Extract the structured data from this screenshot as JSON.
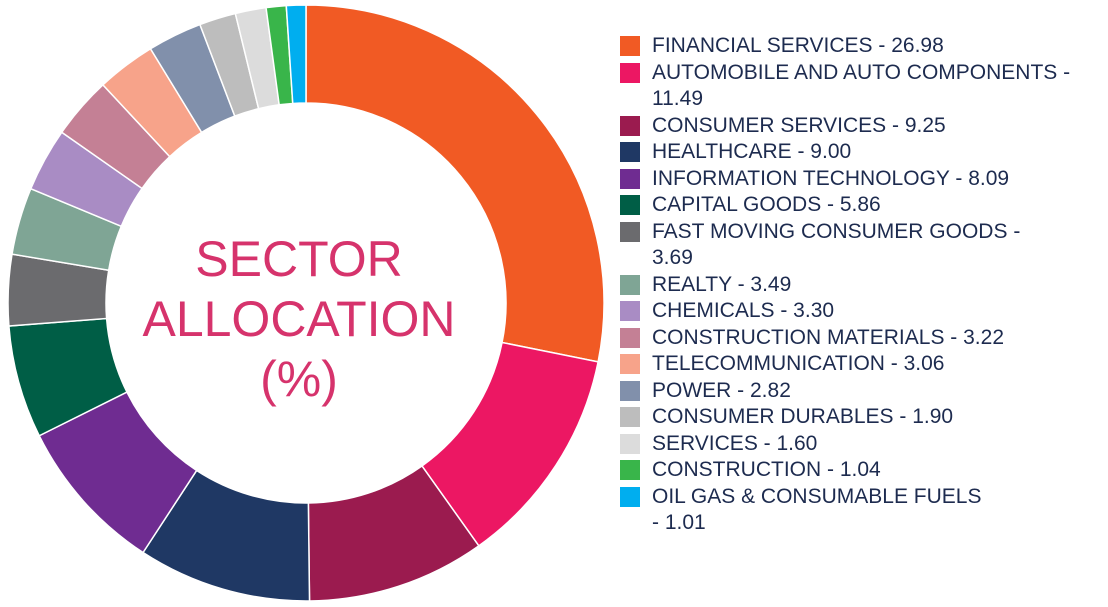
{
  "chart_data": {
    "type": "donut",
    "title_lines": [
      "SECTOR",
      "ALLOCATION",
      "(%)"
    ],
    "legend_placement": "right",
    "series": [
      {
        "name": "FINANCIAL SERVICES",
        "value": 26.98,
        "color": "#f15a24",
        "label": "FINANCIAL SERVICES - 26.98"
      },
      {
        "name": "AUTOMOBILE AND AUTO COMPONENTS",
        "value": 11.49,
        "color": "#ec1763",
        "label": "AUTOMOBILE AND AUTO COMPONENTS -\n11.49"
      },
      {
        "name": "CONSUMER SERVICES",
        "value": 9.25,
        "color": "#9b1b4f",
        "label": "CONSUMER SERVICES - 9.25"
      },
      {
        "name": "HEALTHCARE",
        "value": 9.0,
        "color": "#1f3864",
        "label": "HEALTHCARE - 9.00"
      },
      {
        "name": "INFORMATION TECHNOLOGY",
        "value": 8.09,
        "color": "#6f2c91",
        "label": "INFORMATION TECHNOLOGY - 8.09"
      },
      {
        "name": "CAPITAL GOODS",
        "value": 5.86,
        "color": "#005e46",
        "label": "CAPITAL GOODS - 5.86"
      },
      {
        "name": "FAST MOVING CONSUMER GOODS",
        "value": 3.69,
        "color": "#6b6b6e",
        "label": "FAST MOVING CONSUMER GOODS -\n3.69"
      },
      {
        "name": "REALTY",
        "value": 3.49,
        "color": "#7fa595",
        "label": "REALTY - 3.49"
      },
      {
        "name": "CHEMICALS",
        "value": 3.3,
        "color": "#a98cc4",
        "label": "CHEMICALS - 3.30"
      },
      {
        "name": "CONSTRUCTION MATERIALS",
        "value": 3.22,
        "color": "#c48095",
        "label": "CONSTRUCTION MATERIALS - 3.22"
      },
      {
        "name": "TELECOMMUNICATION",
        "value": 3.06,
        "color": "#f7a38a",
        "label": "TELECOMMUNICATION - 3.06"
      },
      {
        "name": "POWER",
        "value": 2.82,
        "color": "#8190ab",
        "label": "POWER - 2.82"
      },
      {
        "name": "CONSUMER DURABLES",
        "value": 1.9,
        "color": "#bdbdbd",
        "label": "CONSUMER DURABLES - 1.90"
      },
      {
        "name": "SERVICES",
        "value": 1.6,
        "color": "#dcdcdc",
        "label": "SERVICES - 1.60"
      },
      {
        "name": "CONSTRUCTION",
        "value": 1.04,
        "color": "#39b54a",
        "label": "CONSTRUCTION - 1.04"
      },
      {
        "name": "OIL GAS & CONSUMABLE FUELS",
        "value": 1.01,
        "color": "#00aeef",
        "label": "OIL GAS & CONSUMABLE FUELS\n- 1.01"
      }
    ]
  }
}
